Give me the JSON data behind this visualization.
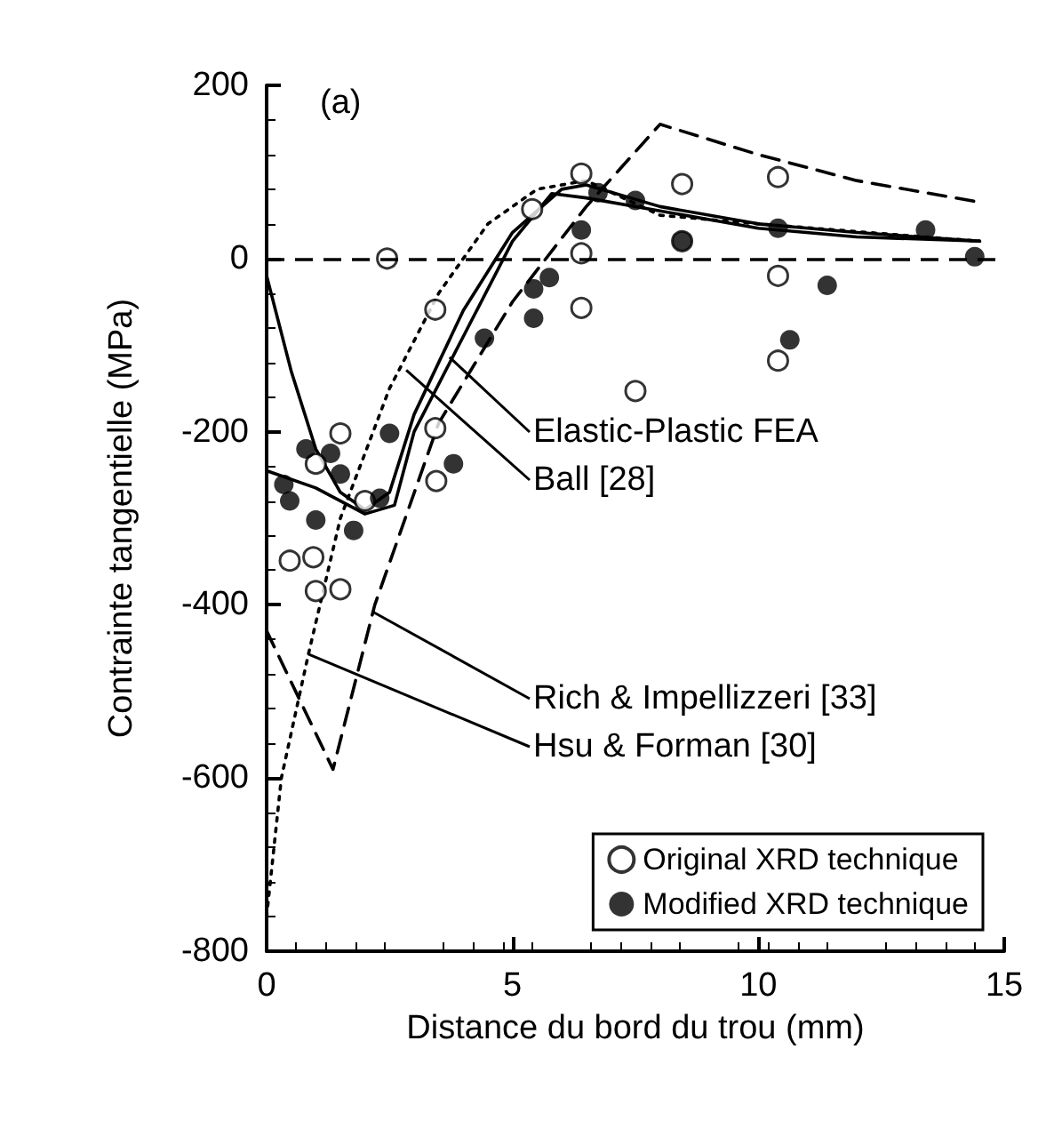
{
  "chart_data": {
    "type": "scatter",
    "xlabel": "Distance du bord du trou (mm)",
    "ylabel": "Contrainte tangentielle (MPa)",
    "xlim": [
      0,
      15
    ],
    "xticks": [
      0,
      5,
      10,
      15
    ],
    "ylim": [
      -800,
      200
    ],
    "yticks": [
      -800,
      -600,
      -400,
      -200,
      0,
      200
    ],
    "grid": false,
    "legend": "bottom right",
    "marker": "circle",
    "series": [
      {
        "name": "Original XRD technique",
        "color": "#000000",
        "x": [
          2.45,
          3.43,
          5.4,
          1.5,
          1.0,
          3.43,
          3.45,
          2.0,
          0.47,
          0.95,
          1.0,
          1.5,
          6.4,
          8.45,
          10.4,
          6.4,
          8.45,
          10.4,
          6.4,
          10.4,
          7.5
        ],
        "values": [
          0,
          -59,
          57,
          -202,
          -237,
          -196,
          -257,
          -280,
          -349,
          -345,
          -384,
          -382,
          98,
          86,
          94,
          6,
          20,
          -20,
          -57,
          -118,
          -153
        ]
      },
      {
        "name": "Modified XRD technique",
        "color": "#000000",
        "x": [
          0.8,
          1.3,
          1.5,
          0.35,
          0.47,
          1.0,
          1.77,
          2.3,
          2.5,
          3.8,
          4.43,
          5.43,
          5.43,
          5.75,
          6.74,
          7.5,
          6.4,
          8.45,
          10.4,
          11.4,
          10.64,
          13.4,
          14.4
        ],
        "values": [
          -220,
          -225,
          -249,
          -261,
          -280,
          -302,
          -314,
          -277,
          -202,
          -237,
          -92,
          -69,
          -35,
          -22,
          76,
          67,
          33,
          20,
          35,
          -31,
          -94,
          33,
          2
        ]
      },
      {
        "type": "line",
        "marker": "none",
        "line_style": "solid",
        "color": "#000000",
        "x": [
          0,
          0.5,
          1,
          1.5,
          2,
          2.5,
          3,
          4,
          5,
          6,
          6.5,
          8,
          10,
          12,
          14.5
        ],
        "values": [
          -20,
          -130,
          -220,
          -270,
          -290,
          -270,
          -180,
          -60,
          30,
          80,
          85,
          60,
          40,
          30,
          20
        ]
      },
      {
        "type": "line",
        "marker": "none",
        "line_style": "solid",
        "color": "#000000",
        "x": [
          0,
          1,
          2,
          2.6,
          3,
          4,
          5,
          5.8,
          6.5,
          8,
          10,
          12,
          14.5
        ],
        "values": [
          -245,
          -265,
          -295,
          -285,
          -200,
          -90,
          20,
          75,
          70,
          55,
          35,
          25,
          20
        ]
      },
      {
        "type": "line",
        "marker": "none",
        "line_style": "dashed",
        "color": "#000000",
        "x": [
          0,
          1.35,
          2.2,
          3.5,
          5,
          6.5,
          8,
          10,
          12,
          14.5
        ],
        "values": [
          -430,
          -590,
          -400,
          -190,
          -50,
          60,
          155,
          120,
          90,
          65
        ]
      },
      {
        "type": "line",
        "marker": "none",
        "line_style": "dotted",
        "color": "#000000",
        "x": [
          0,
          0.3,
          0.85,
          1.5,
          2.5,
          3.5,
          4.5,
          5.5,
          6.5,
          8,
          10,
          14.5
        ],
        "values": [
          -760,
          -600,
          -457,
          -300,
          -150,
          -40,
          40,
          80,
          90,
          50,
          40,
          20
        ]
      }
    ],
    "ref_lines": [
      {
        "axis": "y",
        "value": 0,
        "line_style": "dashed",
        "color": "#000000"
      }
    ],
    "annotations": [
      "(a)",
      {
        "text": "Elastic-Plastic FEA",
        "x": 3.72,
        "y": -114
      },
      {
        "text": "Ball [28]",
        "x": 2.84,
        "y": -129
      },
      {
        "text": "Rich & Impellizzeri [33]",
        "x": 2.16,
        "y": -408
      },
      {
        "text": "Hsu & Forman [30]",
        "x": 0.85,
        "y": -457
      }
    ]
  }
}
